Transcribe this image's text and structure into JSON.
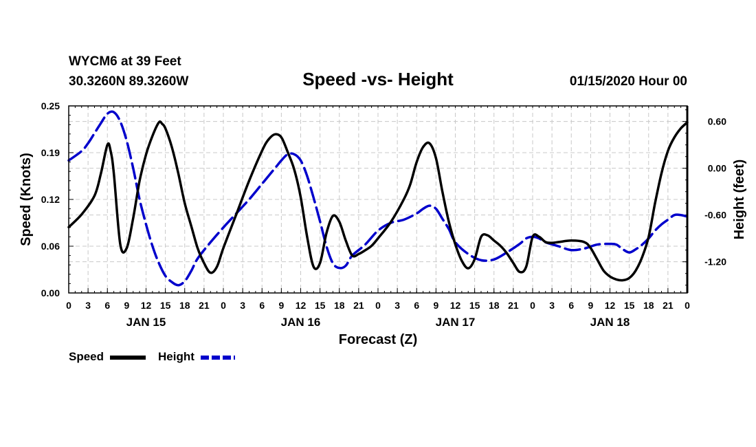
{
  "chart_data": {
    "type": "line",
    "title": "Speed -vs- Height",
    "station": "WYCM6 at 39 Feet",
    "location": "30.3260N 89.3260W",
    "date_label": "01/15/2020 Hour 00",
    "xlabel": "Forecast (Z)",
    "ylabel_left": "Speed (Knots)",
    "ylabel_right": "Height (feet)",
    "x_unit": "hours since 01/15 00Z",
    "xlim": [
      0,
      96
    ],
    "x_tick_labels": [
      "0",
      "3",
      "6",
      "9",
      "12",
      "15",
      "18",
      "21",
      "0",
      "3",
      "6",
      "9",
      "12",
      "15",
      "18",
      "21",
      "0",
      "3",
      "6",
      "9",
      "12",
      "15",
      "18",
      "21",
      "0",
      "3",
      "6",
      "9",
      "12",
      "15",
      "18",
      "21",
      "0"
    ],
    "day_labels": [
      {
        "text": "JAN 15",
        "x": 12
      },
      {
        "text": "JAN 16",
        "x": 36
      },
      {
        "text": "JAN 17",
        "x": 60
      },
      {
        "text": "JAN 18",
        "x": 84
      }
    ],
    "ylim_left": [
      0,
      0.25
    ],
    "yticks_left": [
      "0.00",
      "0.06",
      "0.12",
      "0.19",
      "0.25"
    ],
    "ylim_right": [
      -1.6,
      0.8
    ],
    "yticks_right": [
      {
        "label": "0.60",
        "value": 0.6
      },
      {
        "label": "0.00",
        "value": 0.0
      },
      {
        "label": "-0.60",
        "value": -0.6
      },
      {
        "label": "-1.20",
        "value": -1.2
      }
    ],
    "grid": true,
    "legend": "bottom-left",
    "series": [
      {
        "name": "Speed",
        "axis": "left",
        "color": "#000000",
        "style": "solid",
        "points": [
          [
            0,
            0.088
          ],
          [
            2,
            0.105
          ],
          [
            4,
            0.13
          ],
          [
            5,
            0.16
          ],
          [
            6,
            0.198
          ],
          [
            6.5,
            0.19
          ],
          [
            7,
            0.16
          ],
          [
            8,
            0.065
          ],
          [
            9,
            0.06
          ],
          [
            10,
            0.1
          ],
          [
            11,
            0.15
          ],
          [
            12,
            0.185
          ],
          [
            13,
            0.21
          ],
          [
            14,
            0.228
          ],
          [
            14.5,
            0.226
          ],
          [
            15,
            0.22
          ],
          [
            16,
            0.195
          ],
          [
            17,
            0.16
          ],
          [
            18,
            0.12
          ],
          [
            19,
            0.09
          ],
          [
            20,
            0.06
          ],
          [
            21,
            0.04
          ],
          [
            22,
            0.027
          ],
          [
            23,
            0.035
          ],
          [
            24,
            0.06
          ],
          [
            26,
            0.105
          ],
          [
            28,
            0.15
          ],
          [
            30,
            0.19
          ],
          [
            31,
            0.205
          ],
          [
            32,
            0.212
          ],
          [
            33,
            0.208
          ],
          [
            34,
            0.188
          ],
          [
            35,
            0.165
          ],
          [
            36,
            0.128
          ],
          [
            37,
            0.075
          ],
          [
            38,
            0.035
          ],
          [
            39,
            0.04
          ],
          [
            40,
            0.08
          ],
          [
            41,
            0.103
          ],
          [
            42,
            0.095
          ],
          [
            43,
            0.07
          ],
          [
            44,
            0.05
          ],
          [
            45,
            0.052
          ],
          [
            46,
            0.057
          ],
          [
            47,
            0.063
          ],
          [
            48,
            0.073
          ],
          [
            50,
            0.095
          ],
          [
            52,
            0.125
          ],
          [
            53,
            0.145
          ],
          [
            54,
            0.175
          ],
          [
            55,
            0.195
          ],
          [
            56,
            0.2
          ],
          [
            57,
            0.18
          ],
          [
            58,
            0.135
          ],
          [
            59,
            0.095
          ],
          [
            60,
            0.065
          ],
          [
            61,
            0.043
          ],
          [
            62,
            0.033
          ],
          [
            63,
            0.045
          ],
          [
            64,
            0.075
          ],
          [
            65,
            0.077
          ],
          [
            66,
            0.07
          ],
          [
            67,
            0.063
          ],
          [
            68,
            0.053
          ],
          [
            69,
            0.04
          ],
          [
            70,
            0.028
          ],
          [
            71,
            0.035
          ],
          [
            72,
            0.075
          ],
          [
            73,
            0.075
          ],
          [
            74,
            0.068
          ],
          [
            75,
            0.067
          ],
          [
            76,
            0.068
          ],
          [
            78,
            0.07
          ],
          [
            80,
            0.068
          ],
          [
            81,
            0.06
          ],
          [
            82,
            0.045
          ],
          [
            83,
            0.03
          ],
          [
            84,
            0.022
          ],
          [
            85,
            0.018
          ],
          [
            86,
            0.017
          ],
          [
            87,
            0.02
          ],
          [
            88,
            0.03
          ],
          [
            89,
            0.048
          ],
          [
            90,
            0.075
          ],
          [
            91,
            0.12
          ],
          [
            92,
            0.16
          ],
          [
            93,
            0.19
          ],
          [
            94,
            0.208
          ],
          [
            95,
            0.22
          ],
          [
            96,
            0.228
          ]
        ]
      },
      {
        "name": "Height",
        "axis": "right",
        "color": "#0000cc",
        "style": "dashed",
        "points": [
          [
            0,
            0.1
          ],
          [
            2,
            0.22
          ],
          [
            3,
            0.32
          ],
          [
            4,
            0.45
          ],
          [
            5,
            0.58
          ],
          [
            6,
            0.7
          ],
          [
            7,
            0.72
          ],
          [
            8,
            0.6
          ],
          [
            9,
            0.35
          ],
          [
            10,
            0.0
          ],
          [
            11,
            -0.4
          ],
          [
            12,
            -0.72
          ],
          [
            13,
            -1.0
          ],
          [
            14,
            -1.22
          ],
          [
            15,
            -1.38
          ],
          [
            16,
            -1.46
          ],
          [
            17,
            -1.5
          ],
          [
            18,
            -1.45
          ],
          [
            19,
            -1.32
          ],
          [
            20,
            -1.16
          ],
          [
            22,
            -0.95
          ],
          [
            24,
            -0.76
          ],
          [
            26,
            -0.58
          ],
          [
            28,
            -0.4
          ],
          [
            30,
            -0.2
          ],
          [
            32,
            0.0
          ],
          [
            33,
            0.1
          ],
          [
            34,
            0.18
          ],
          [
            35,
            0.18
          ],
          [
            36,
            0.1
          ],
          [
            37,
            -0.1
          ],
          [
            38,
            -0.38
          ],
          [
            39,
            -0.68
          ],
          [
            40,
            -1.0
          ],
          [
            41,
            -1.22
          ],
          [
            42,
            -1.28
          ],
          [
            43,
            -1.25
          ],
          [
            44,
            -1.12
          ],
          [
            46,
            -0.98
          ],
          [
            48,
            -0.8
          ],
          [
            50,
            -0.7
          ],
          [
            52,
            -0.66
          ],
          [
            54,
            -0.58
          ],
          [
            55,
            -0.52
          ],
          [
            56,
            -0.48
          ],
          [
            57,
            -0.52
          ],
          [
            58,
            -0.65
          ],
          [
            59,
            -0.78
          ],
          [
            60,
            -0.95
          ],
          [
            62,
            -1.1
          ],
          [
            64,
            -1.18
          ],
          [
            66,
            -1.17
          ],
          [
            68,
            -1.08
          ],
          [
            70,
            -0.97
          ],
          [
            71,
            -0.9
          ],
          [
            72,
            -0.88
          ],
          [
            73,
            -0.9
          ],
          [
            74,
            -0.95
          ],
          [
            76,
            -1.0
          ],
          [
            78,
            -1.05
          ],
          [
            80,
            -1.03
          ],
          [
            82,
            -0.98
          ],
          [
            84,
            -0.97
          ],
          [
            85,
            -0.98
          ],
          [
            86,
            -1.04
          ],
          [
            87,
            -1.08
          ],
          [
            88,
            -1.04
          ],
          [
            89,
            -0.98
          ],
          [
            90,
            -0.9
          ],
          [
            91,
            -0.8
          ],
          [
            92,
            -0.72
          ],
          [
            93,
            -0.66
          ],
          [
            94,
            -0.6
          ],
          [
            95,
            -0.6
          ],
          [
            96,
            -0.62
          ]
        ]
      }
    ]
  }
}
